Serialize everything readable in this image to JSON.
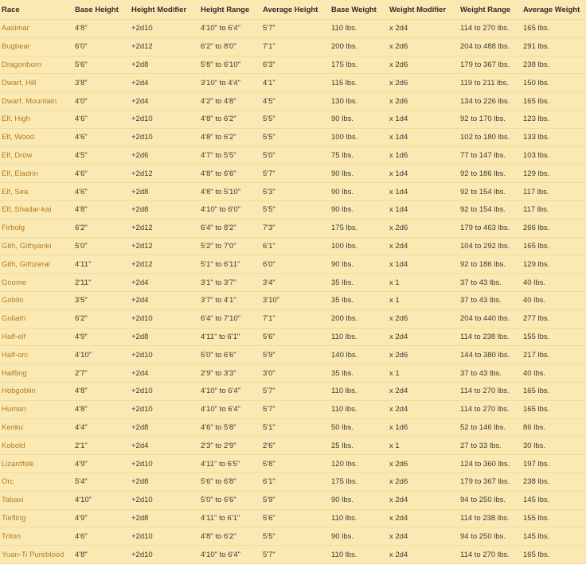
{
  "table": {
    "header": [
      "Race",
      "Base Height",
      "Height Modifier",
      "Height Range",
      "Average Height",
      "Base Weight",
      "Weight Modifier",
      "Weight Range",
      "Average Weight"
    ],
    "rows": [
      [
        "Aasimar",
        "4'8\"",
        "+2d10",
        "4'10\" to 6'4\"",
        "5'7\"",
        "110 lbs.",
        "x 2d4",
        "114 to 270 lbs.",
        "165 lbs."
      ],
      [
        "Bugbear",
        "6'0\"",
        "+2d12",
        "6'2\" to 8'0\"",
        "7'1\"",
        "200 lbs.",
        "x 2d6",
        "204 to 488 lbs.",
        "291 lbs."
      ],
      [
        "Dragonborn",
        "5'6\"",
        "+2d8",
        "5'8\" to 6'10\"",
        "6'3\"",
        "175 lbs.",
        "x 2d6",
        "179 to 367 lbs.",
        "238 lbs."
      ],
      [
        "Dwarf, Hill",
        "3'8\"",
        "+2d4",
        "3'10\" to 4'4\"",
        "4'1\"",
        "115 lbs.",
        "x 2d6",
        "119 to 211 lbs.",
        "150 lbs."
      ],
      [
        "Dwarf, Mountain",
        "4'0\"",
        "+2d4",
        "4'2\" to 4'8\"",
        "4'5\"",
        "130 lbs.",
        "x 2d6",
        "134 to 226 lbs.",
        "165 lbs."
      ],
      [
        "Elf, High",
        "4'6\"",
        "+2d10",
        "4'8\" to 6'2\"",
        "5'5\"",
        "90 lbs.",
        "x 1d4",
        "92 to 170 lbs.",
        "123 lbs."
      ],
      [
        "Elf, Wood",
        "4'6\"",
        "+2d10",
        "4'8\" to 6'2\"",
        "5'5\"",
        "100 lbs.",
        "x 1d4",
        "102 to 180 lbs.",
        "133 lbs."
      ],
      [
        "Elf, Drow",
        "4'5\"",
        "+2d6",
        "4'7\" to 5'5\"",
        "5'0\"",
        "75 lbs.",
        "x 1d6",
        "77 to 147 lbs.",
        "103 lbs."
      ],
      [
        "Elf, Eladrin",
        "4'6\"",
        "+2d12",
        "4'8\" to 6'6\"",
        "5'7\"",
        "90 lbs.",
        "x 1d4",
        "92 to 186 lbs.",
        "129 lbs."
      ],
      [
        "Elf, Sea",
        "4'6\"",
        "+2d8",
        "4'8\" to 5'10\"",
        "5'3\"",
        "90 lbs.",
        "x 1d4",
        "92 to 154 lbs.",
        "117 lbs."
      ],
      [
        "Elf, Shadar-kai",
        "4'8\"",
        "+2d8",
        "4'10\" to 6'0\"",
        "5'5\"",
        "90 lbs.",
        "x 1d4",
        "92 to 154 lbs.",
        "117 lbs."
      ],
      [
        "Firbolg",
        "6'2\"",
        "+2d12",
        "6'4\" to 8'2\"",
        "7'3\"",
        "175 lbs.",
        "x 2d6",
        "179 to 463 lbs.",
        "266 lbs."
      ],
      [
        "Gith, Githyanki",
        "5'0\"",
        "+2d12",
        "5'2\" to 7'0\"",
        "6'1\"",
        "100 lbs.",
        "x 2d4",
        "104 to 292 lbs.",
        "165 lbs."
      ],
      [
        "Gith, Githzerai",
        "4'11\"",
        "+2d12",
        "5'1\" to 6'11\"",
        "6'0\"",
        "90 lbs.",
        "x 1d4",
        "92 to 186 lbs.",
        "129 lbs."
      ],
      [
        "Gnome",
        "2'11\"",
        "+2d4",
        "3'1\" to 3'7\"",
        "3'4\"",
        "35 lbs.",
        "x 1",
        "37 to 43 lbs.",
        "40 lbs."
      ],
      [
        "Goblin",
        "3'5\"",
        "+2d4",
        "3'7\" to 4'1\"",
        "3'10\"",
        "35 lbs.",
        "x 1",
        "37 to 43 lbs.",
        "40 lbs."
      ],
      [
        "Goliath",
        "6'2\"",
        "+2d10",
        "6'4\" to 7'10\"",
        "7'1\"",
        "200 lbs.",
        "x 2d6",
        "204 to 440 lbs.",
        "277 lbs."
      ],
      [
        "Half-elf",
        "4'9\"",
        "+2d8",
        "4'11\" to 6'1\"",
        "5'6\"",
        "110 lbs.",
        "x 2d4",
        "114 to 238 lbs.",
        "155 lbs."
      ],
      [
        "Half-orc",
        "4'10\"",
        "+2d10",
        "5'0\" to 6'6\"",
        "5'9\"",
        "140 lbs.",
        "x 2d6",
        "144 to 380 lbs.",
        "217 lbs."
      ],
      [
        "Halfling",
        "2'7\"",
        "+2d4",
        "2'9\" to 3'3\"",
        "3'0\"",
        "35 lbs.",
        "x 1",
        "37 to 43 lbs.",
        "40 lbs."
      ],
      [
        "Hobgoblin",
        "4'8\"",
        "+2d10",
        "4'10\" to 6'4\"",
        "5'7\"",
        "110 lbs.",
        "x 2d4",
        "114 to 270 lbs.",
        "165 lbs."
      ],
      [
        "Human",
        "4'8\"",
        "+2d10",
        "4'10\" to 6'4\"",
        "5'7\"",
        "110 lbs.",
        "x 2d4",
        "114 to 270 lbs.",
        "165 lbs."
      ],
      [
        "Kenku",
        "4'4\"",
        "+2d8",
        "4'6\" to 5'8\"",
        "5'1\"",
        "50 lbs.",
        "x 1d6",
        "52 to 146 lbs.",
        "86 lbs."
      ],
      [
        "Kobold",
        "2'1\"",
        "+2d4",
        "2'3\" to 2'9\"",
        "2'6\"",
        "25 lbs.",
        "x 1",
        "27 to 33 lbs.",
        "30 lbs."
      ],
      [
        "Lizardfolk",
        "4'9\"",
        "+2d10",
        "4'11\" to 6'5\"",
        "5'8\"",
        "120 lbs.",
        "x 2d6",
        "124 to 360 lbs.",
        "197 lbs."
      ],
      [
        "Orc",
        "5'4\"",
        "+2d8",
        "5'6\" to 6'8\"",
        "6'1\"",
        "175 lbs.",
        "x 2d6",
        "179 to 367 lbs.",
        "238 lbs."
      ],
      [
        "Tabaxi",
        "4'10\"",
        "+2d10",
        "5'0\" to 6'6\"",
        "5'9\"",
        "90 lbs.",
        "x 2d4",
        "94 to 250 lbs.",
        "145 lbs."
      ],
      [
        "Tiefling",
        "4'9\"",
        "+2d8",
        "4'11\" to 6'1\"",
        "5'6\"",
        "110 lbs.",
        "x 2d4",
        "114 to 238 lbs.",
        "155 lbs."
      ],
      [
        "Triton",
        "4'6\"",
        "+2d10",
        "4'8\" to 6'2\"",
        "5'5\"",
        "90 lbs.",
        "x 2d4",
        "94 to 250 lbs.",
        "145 lbs."
      ],
      [
        "Yuan-Ti Pureblood",
        "4'8\"",
        "+2d10",
        "4'10\" to 6'4\"",
        "5'7\"",
        "110 lbs.",
        "x 2d4",
        "114 to 270 lbs.",
        "165 lbs."
      ]
    ]
  }
}
